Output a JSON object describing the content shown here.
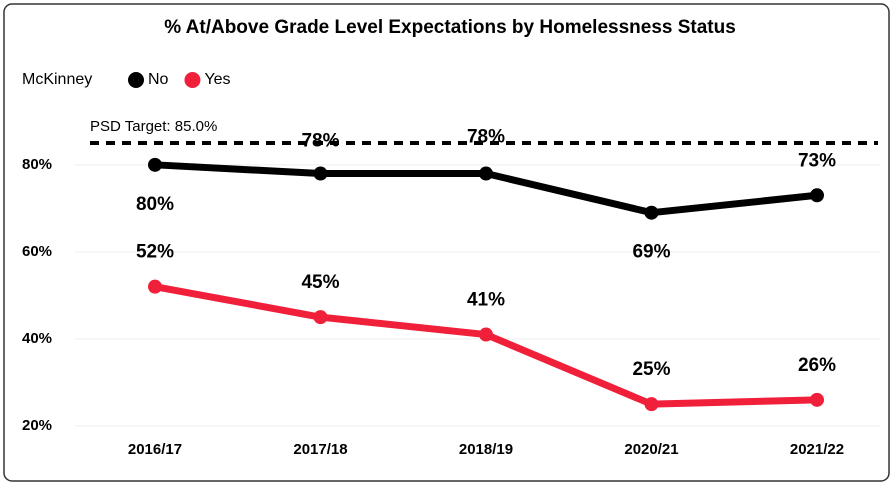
{
  "chart_data": {
    "type": "line",
    "title": "% At/Above Grade Level Expectations by Homelessness Status",
    "legend_title": "McKinney",
    "categories": [
      "2016/17",
      "2017/18",
      "2018/19",
      "2020/21",
      "2021/22"
    ],
    "series": [
      {
        "name": "No",
        "color": "#000000",
        "values": [
          80,
          78,
          78,
          69,
          73
        ],
        "value_labels": [
          "80%",
          "78%",
          "78%",
          "69%",
          "73%"
        ]
      },
      {
        "name": "Yes",
        "color": "#f0203a",
        "values": [
          52,
          45,
          41,
          25,
          26
        ],
        "value_labels": [
          "52%",
          "45%",
          "41%",
          "25%",
          "26%"
        ]
      }
    ],
    "target": {
      "value": 85,
      "label": "PSD Target: 85.0%"
    },
    "ylim": [
      17,
      88
    ],
    "yticks": [
      {
        "value": 20,
        "label": "20%"
      },
      {
        "value": 40,
        "label": "40%"
      },
      {
        "value": 60,
        "label": "60%"
      },
      {
        "value": 80,
        "label": "80%"
      }
    ],
    "grid": true,
    "legend": "top-left"
  }
}
